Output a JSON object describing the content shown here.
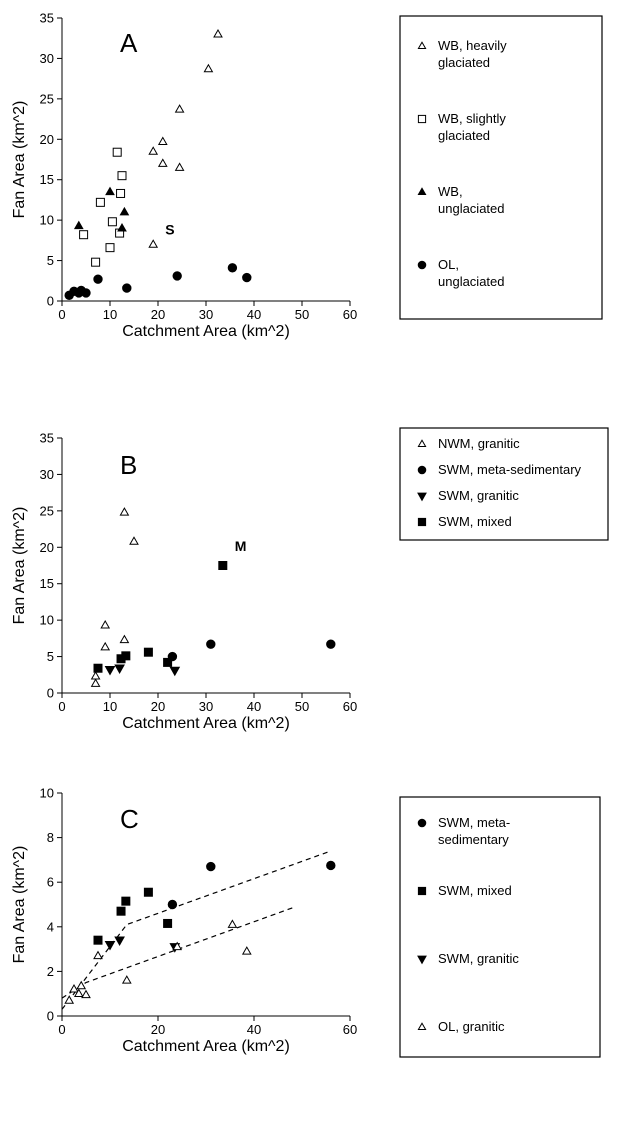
{
  "chart_data": [
    {
      "type": "scatter",
      "panel": "A",
      "xlabel": "Catchment Area (km^2)",
      "ylabel": "Fan Area (km^2)",
      "xlim": [
        0,
        60
      ],
      "ylim": [
        0,
        35
      ],
      "xticks": [
        "0",
        "10",
        "20",
        "30",
        "40",
        "50",
        "60"
      ],
      "yticks": [
        "0",
        "5",
        "10",
        "15",
        "20",
        "25",
        "30",
        "35"
      ],
      "grid": false,
      "legend_position": "right",
      "series": [
        {
          "name": "WB, heavily glaciated",
          "legend_lines": [
            "WB, heavily",
            "glaciated"
          ],
          "marker": "triangle-open",
          "points": [
            [
              19,
              7
            ],
            [
              19,
              18.5
            ],
            [
              21,
              17
            ],
            [
              21,
              19.7
            ],
            [
              24.5,
              16.5
            ],
            [
              24.5,
              23.7
            ],
            [
              30.5,
              28.7
            ],
            [
              32.5,
              33
            ]
          ]
        },
        {
          "name": "WB, slightly glaciated",
          "legend_lines": [
            "WB, slightly",
            "glaciated"
          ],
          "marker": "square-open",
          "points": [
            [
              4.5,
              8.2
            ],
            [
              7,
              4.8
            ],
            [
              8,
              12.2
            ],
            [
              10,
              6.6
            ],
            [
              10.5,
              9.8
            ],
            [
              11.5,
              18.4
            ],
            [
              12,
              8.4
            ],
            [
              12.2,
              13.3
            ],
            [
              12.5,
              15.5
            ]
          ]
        },
        {
          "name": "WB, unglaciated",
          "legend_lines": [
            "WB,",
            "unglaciated"
          ],
          "marker": "triangle-filled",
          "points": [
            [
              3.5,
              9.3
            ],
            [
              10,
              13.5
            ],
            [
              12.5,
              9
            ],
            [
              13,
              11
            ]
          ]
        },
        {
          "name": "OL, unglaciated",
          "legend_lines": [
            "OL,",
            "unglaciated"
          ],
          "marker": "circle-filled",
          "points": [
            [
              1.5,
              0.7
            ],
            [
              2.5,
              1.2
            ],
            [
              3.5,
              1
            ],
            [
              4,
              1.3
            ],
            [
              5,
              1
            ],
            [
              7.5,
              2.7
            ],
            [
              13.5,
              1.6
            ],
            [
              24,
              3.1
            ],
            [
              35.5,
              4.1
            ],
            [
              38.5,
              2.9
            ]
          ]
        }
      ],
      "annotations": [
        {
          "text": "S",
          "x": 21.5,
          "y": 8.2
        }
      ]
    },
    {
      "type": "scatter",
      "panel": "B",
      "xlabel": "Catchment Area (km^2)",
      "ylabel": "Fan Area (km^2)",
      "xlim": [
        0,
        60
      ],
      "ylim": [
        0,
        35
      ],
      "xticks": [
        "0",
        "10",
        "20",
        "30",
        "40",
        "50",
        "60"
      ],
      "yticks": [
        "0",
        "5",
        "10",
        "15",
        "20",
        "25",
        "30",
        "35"
      ],
      "grid": false,
      "legend_position": "right",
      "series": [
        {
          "name": "NWM, granitic",
          "legend_lines": [
            "NWM, granitic"
          ],
          "marker": "triangle-open",
          "points": [
            [
              7,
              1.3
            ],
            [
              7,
              2.3
            ],
            [
              9,
              6.3
            ],
            [
              9,
              9.3
            ],
            [
              13,
              7.3
            ],
            [
              13,
              24.8
            ],
            [
              15,
              20.8
            ]
          ]
        },
        {
          "name": "SWM, meta-sedimentary",
          "legend_lines": [
            "SWM, meta-sedimentary"
          ],
          "marker": "circle-filled",
          "points": [
            [
              23,
              5
            ],
            [
              31,
              6.7
            ],
            [
              56,
              6.7
            ]
          ]
        },
        {
          "name": "SWM, granitic",
          "legend_lines": [
            "SWM, granitic"
          ],
          "marker": "triangle-down-filled",
          "points": [
            [
              10,
              3.2
            ],
            [
              12,
              3.4
            ],
            [
              23.5,
              3.1
            ]
          ]
        },
        {
          "name": "SWM, mixed",
          "legend_lines": [
            "SWM, mixed"
          ],
          "marker": "square-filled",
          "points": [
            [
              7.5,
              3.4
            ],
            [
              12.3,
              4.7
            ],
            [
              13.3,
              5.1
            ],
            [
              18,
              5.6
            ],
            [
              22,
              4.2
            ],
            [
              33.5,
              17.5
            ]
          ]
        }
      ],
      "annotations": [
        {
          "text": "M",
          "x": 36,
          "y": 19.5
        }
      ]
    },
    {
      "type": "scatter",
      "panel": "C",
      "xlabel": "Catchment Area (km^2)",
      "ylabel": "Fan Area (km^2)",
      "xlim": [
        0,
        60
      ],
      "ylim": [
        0,
        10
      ],
      "xticks": [
        "0",
        "20",
        "40",
        "60"
      ],
      "yticks": [
        "0",
        "2",
        "4",
        "6",
        "8",
        "10"
      ],
      "grid": false,
      "legend_position": "right",
      "series": [
        {
          "name": "SWM, meta-sedimentary",
          "legend_lines": [
            "SWM, meta-",
            "sedimentary"
          ],
          "marker": "circle-filled",
          "points": [
            [
              23,
              5
            ],
            [
              31,
              6.7
            ],
            [
              56,
              6.75
            ]
          ]
        },
        {
          "name": "SWM, mixed",
          "legend_lines": [
            "SWM, mixed"
          ],
          "marker": "square-filled",
          "points": [
            [
              7.5,
              3.4
            ],
            [
              12.3,
              4.7
            ],
            [
              13.3,
              5.15
            ],
            [
              18,
              5.55
            ],
            [
              22,
              4.15
            ]
          ]
        },
        {
          "name": "SWM, granitic",
          "legend_lines": [
            "SWM, granitic"
          ],
          "marker": "triangle-down-filled",
          "points": [
            [
              10,
              3.2
            ],
            [
              12,
              3.4
            ],
            [
              23.5,
              3.1
            ]
          ]
        },
        {
          "name": "OL, granitic",
          "legend_lines": [
            "OL, granitic"
          ],
          "marker": "triangle-open",
          "points": [
            [
              1.5,
              0.7
            ],
            [
              2.5,
              1.2
            ],
            [
              3.5,
              1
            ],
            [
              4,
              1.35
            ],
            [
              5,
              0.95
            ],
            [
              7.5,
              2.7
            ],
            [
              13.5,
              1.6
            ],
            [
              24,
              3.1
            ],
            [
              35.5,
              4.1
            ],
            [
              38.5,
              2.9
            ]
          ]
        }
      ],
      "trend_lines": [
        {
          "points": [
            [
              0,
              0.3
            ],
            [
              13.5,
              4.1
            ],
            [
              56,
              7.4
            ]
          ],
          "style": "dashed"
        },
        {
          "points": [
            [
              0,
              0.8
            ],
            [
              5,
              1.5
            ],
            [
              48,
              4.85
            ]
          ],
          "style": "dashed"
        }
      ]
    }
  ]
}
